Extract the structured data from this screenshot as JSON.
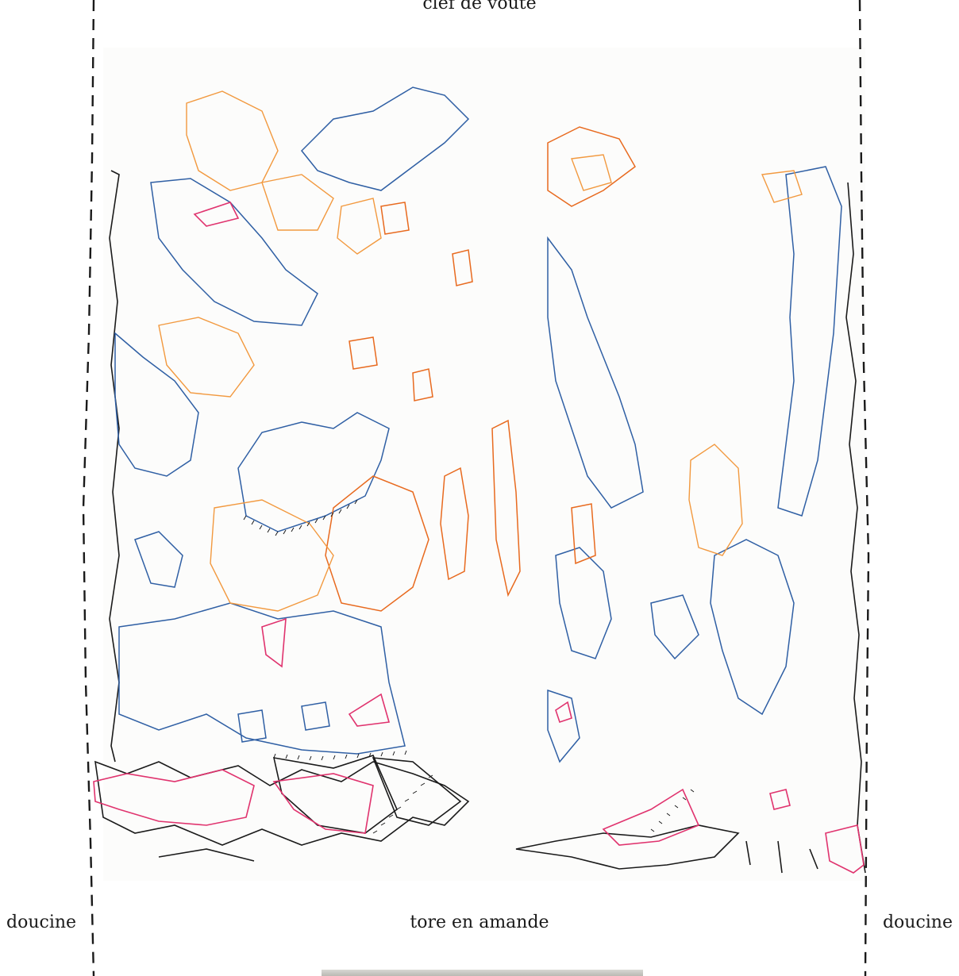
{
  "labels": {
    "top": "clef de voûte",
    "bottom": "tore en amande",
    "left": "doucine",
    "right": "doucine"
  },
  "palette": {
    "blue": "#2f5fa4",
    "dark_blue": "#1c4585",
    "orange": "#f2993f",
    "dark_orange": "#e86a1f",
    "red_orange": "#e8502a",
    "pink": "#e0336e",
    "black": "#1a1a1a"
  }
}
